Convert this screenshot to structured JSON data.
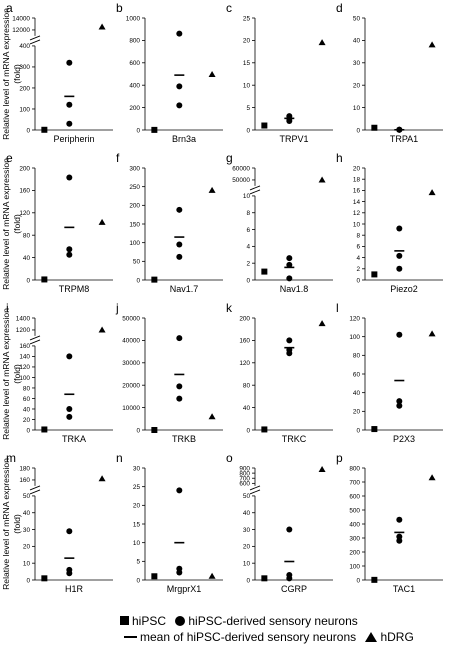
{
  "ylabel": "Relative level of mRNA expression\n(fold)",
  "legend": {
    "hipsc": "hiPSC",
    "neurons": "hiPSC-derived sensory neurons",
    "mean": "mean of hiPSC-derived sensory neurons",
    "hdrg": "hDRG"
  },
  "chart_data": [
    {
      "panel": "a",
      "type": "scatter",
      "title": "Peripherin",
      "break": true,
      "lower_ticks": [
        0,
        100,
        200,
        300,
        400
      ],
      "upper_ticks": [
        12000,
        14000
      ],
      "lower_ylim": [
        0,
        400
      ],
      "upper_ylim": [
        11000,
        14000
      ],
      "hipsc": 1,
      "neurons": [
        320,
        120,
        30
      ],
      "mean": 160,
      "hdrg": 12500
    },
    {
      "panel": "b",
      "type": "scatter",
      "title": "Brn3a",
      "break": false,
      "ticks": [
        0,
        200,
        400,
        600,
        800,
        1000
      ],
      "ylim": [
        0,
        1000
      ],
      "hipsc": 1,
      "neurons": [
        860,
        390,
        220
      ],
      "mean": 490,
      "hdrg": 495
    },
    {
      "panel": "c",
      "type": "scatter",
      "title": "TRPV1",
      "break": false,
      "ticks": [
        0,
        5,
        10,
        15,
        20,
        25
      ],
      "ylim": [
        0,
        25
      ],
      "hipsc": 1,
      "neurons": [
        3.1,
        2.5,
        2.0
      ],
      "mean": 2.6,
      "hdrg": 19.5
    },
    {
      "panel": "d",
      "type": "scatter",
      "title": "TRPA1",
      "break": false,
      "ticks": [
        0,
        10,
        20,
        30,
        40,
        50
      ],
      "ylim": [
        0,
        50
      ],
      "hipsc": 1,
      "neurons": [
        0.1,
        0.1,
        0.1
      ],
      "mean": 0.1,
      "hdrg": 38
    },
    {
      "panel": "e",
      "type": "scatter",
      "title": "TRPM8",
      "break": false,
      "ticks": [
        0,
        40,
        80,
        120,
        160,
        200
      ],
      "ylim": [
        0,
        200
      ],
      "hipsc": 1,
      "neurons": [
        183,
        55,
        45
      ],
      "mean": 94,
      "hdrg": 103
    },
    {
      "panel": "f",
      "type": "scatter",
      "title": "Nav1.7",
      "break": false,
      "ticks": [
        0,
        50,
        100,
        150,
        200,
        250,
        300
      ],
      "ylim": [
        0,
        300
      ],
      "hipsc": 1,
      "neurons": [
        188,
        95,
        62
      ],
      "mean": 115,
      "hdrg": 240
    },
    {
      "panel": "g",
      "type": "scatter",
      "title": "Nav1.8",
      "break": true,
      "lower_ticks": [
        0,
        2,
        4,
        6,
        8,
        10
      ],
      "upper_ticks": [
        50000,
        60000
      ],
      "lower_ylim": [
        0,
        10
      ],
      "upper_ylim": [
        45000,
        60000
      ],
      "hipsc": 1,
      "neurons": [
        2.6,
        1.8,
        0.2
      ],
      "mean": 1.5,
      "hdrg": 50000
    },
    {
      "panel": "h",
      "type": "scatter",
      "title": "Piezo2",
      "break": false,
      "ticks": [
        0,
        2,
        4,
        6,
        8,
        10,
        12,
        14,
        16,
        18,
        20
      ],
      "ylim": [
        0,
        20
      ],
      "hipsc": 1,
      "neurons": [
        9.2,
        4.3,
        2.0
      ],
      "mean": 5.2,
      "hdrg": 15.6
    },
    {
      "panel": "i",
      "type": "scatter",
      "title": "TRKA",
      "break": true,
      "lower_ticks": [
        0,
        20,
        40,
        60,
        80,
        100,
        120,
        140,
        160
      ],
      "upper_ticks": [
        1200,
        1400
      ],
      "lower_ylim": [
        0,
        160
      ],
      "upper_ylim": [
        1100,
        1400
      ],
      "hipsc": 1,
      "neurons": [
        140,
        40,
        25
      ],
      "mean": 68,
      "hdrg": 1200
    },
    {
      "panel": "j",
      "type": "scatter",
      "title": "TRKB",
      "break": false,
      "ticks": [
        0,
        10000,
        20000,
        30000,
        40000,
        50000
      ],
      "ylim": [
        0,
        50000
      ],
      "hipsc": 1,
      "neurons": [
        41000,
        19500,
        14000
      ],
      "mean": 24800,
      "hdrg": 5900
    },
    {
      "panel": "k",
      "type": "scatter",
      "title": "TRKC",
      "break": false,
      "ticks": [
        0,
        40,
        80,
        120,
        160,
        200
      ],
      "ylim": [
        0,
        200
      ],
      "hipsc": 1,
      "neurons": [
        160,
        143,
        137
      ],
      "mean": 147,
      "hdrg": 190
    },
    {
      "panel": "l",
      "type": "scatter",
      "title": "P2X3",
      "break": false,
      "ticks": [
        0,
        20,
        40,
        60,
        80,
        100,
        120
      ],
      "ylim": [
        0,
        120
      ],
      "hipsc": 1,
      "neurons": [
        102,
        31,
        26
      ],
      "mean": 53,
      "hdrg": 103
    },
    {
      "panel": "m",
      "type": "scatter",
      "title": "H1R",
      "break": true,
      "lower_ticks": [
        0,
        10,
        20,
        30,
        40,
        50
      ],
      "upper_ticks": [
        160,
        180
      ],
      "lower_ylim": [
        0,
        50
      ],
      "upper_ylim": [
        150,
        180
      ],
      "hipsc": 1,
      "neurons": [
        29,
        6,
        4
      ],
      "mean": 13,
      "hdrg": 162
    },
    {
      "panel": "n",
      "type": "scatter",
      "title": "MrgprX1",
      "break": false,
      "ticks": [
        0,
        5,
        10,
        15,
        20,
        25,
        30
      ],
      "ylim": [
        0,
        30
      ],
      "hipsc": 1,
      "neurons": [
        24,
        3,
        2
      ],
      "mean": 10,
      "hdrg": 1
    },
    {
      "panel": "o",
      "type": "scatter",
      "title": "CGRP",
      "break": true,
      "lower_ticks": [
        0,
        10,
        20,
        30,
        40,
        50
      ],
      "upper_ticks": [
        600,
        700,
        800,
        900
      ],
      "lower_ylim": [
        0,
        50
      ],
      "upper_ylim": [
        550,
        900
      ],
      "hipsc": 1,
      "neurons": [
        30,
        3,
        1
      ],
      "mean": 11,
      "hdrg": 870
    },
    {
      "panel": "p",
      "type": "scatter",
      "title": "TAC1",
      "break": false,
      "ticks": [
        0,
        100,
        200,
        300,
        400,
        500,
        600,
        700,
        800
      ],
      "ylim": [
        0,
        800
      ],
      "hipsc": 1,
      "neurons": [
        430,
        310,
        280
      ],
      "mean": 340,
      "hdrg": 730
    }
  ]
}
